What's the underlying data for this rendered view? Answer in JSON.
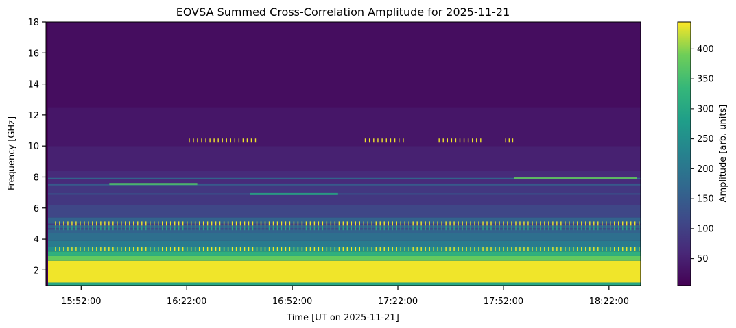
{
  "chart_data": {
    "type": "heatmap",
    "title": "EOVSA Summed Cross-Correlation Amplitude for 2025-11-21",
    "xlabel": "Time [UT on 2025-11-21]",
    "ylabel": "Frequency [GHz]",
    "x_ticks": [
      "15:52:00",
      "16:22:00",
      "16:52:00",
      "17:22:00",
      "17:52:00",
      "18:22:00"
    ],
    "x_range": [
      "15:42:00",
      "18:31:00"
    ],
    "y_ticks": [
      2,
      4,
      6,
      8,
      10,
      12,
      14,
      16,
      18
    ],
    "ylim": [
      1,
      18
    ],
    "colorbar": {
      "label": "Amplitude [arb. units]",
      "ticks": [
        50,
        100,
        150,
        200,
        250,
        300,
        350,
        400
      ],
      "range": [
        5,
        445
      ],
      "colormap": "viridis"
    },
    "bands": [
      {
        "f_low": 1.0,
        "f_high": 1.2,
        "amplitude": 300
      },
      {
        "f_low": 1.2,
        "f_high": 2.6,
        "amplitude": 440
      },
      {
        "f_low": 2.6,
        "f_high": 2.9,
        "amplitude": 380
      },
      {
        "f_low": 2.9,
        "f_high": 3.2,
        "amplitude": 320
      },
      {
        "f_low": 3.2,
        "f_high": 3.5,
        "amplitude": 250
      },
      {
        "f_low": 3.5,
        "f_high": 3.9,
        "amplitude": 210
      },
      {
        "f_low": 3.9,
        "f_high": 4.4,
        "amplitude": 185
      },
      {
        "f_low": 4.4,
        "f_high": 5.4,
        "amplitude": 160
      },
      {
        "f_low": 5.4,
        "f_high": 6.2,
        "amplitude": 110
      },
      {
        "f_low": 6.2,
        "f_high": 7.6,
        "amplitude": 85
      },
      {
        "f_low": 7.6,
        "f_high": 8.4,
        "amplitude": 65
      },
      {
        "f_low": 8.4,
        "f_high": 10.0,
        "amplitude": 50
      },
      {
        "f_low": 10.0,
        "f_high": 12.5,
        "amplitude": 35
      },
      {
        "f_low": 12.5,
        "f_high": 18.0,
        "amplitude": 22
      }
    ],
    "lines": [
      {
        "freq": 7.5,
        "amplitude": 150
      },
      {
        "freq": 6.9,
        "amplitude": 140
      },
      {
        "freq": 7.9,
        "amplitude": 170
      },
      {
        "freq": 4.95,
        "amplitude": 90
      },
      {
        "freq": 4.65,
        "amplitude": 95
      }
    ],
    "features": [
      {
        "kind": "line",
        "freq": 7.55,
        "t_start": "16:00:00",
        "t_end": "16:25:00",
        "amplitude": 360
      },
      {
        "kind": "line",
        "freq": 6.9,
        "t_start": "16:40:00",
        "t_end": "17:05:00",
        "amplitude": 300
      },
      {
        "kind": "line",
        "freq": 7.95,
        "t_start": "17:55:00",
        "t_end": "18:30:00",
        "amplitude": 380
      },
      {
        "kind": "rfi",
        "freq": 10.35,
        "t_start": "16:22:00",
        "t_end": "16:42:00",
        "amplitude": 440
      },
      {
        "kind": "rfi",
        "freq": 10.35,
        "t_start": "17:12:00",
        "t_end": "17:24:00",
        "amplitude": 440
      },
      {
        "kind": "rfi",
        "freq": 10.35,
        "t_start": "17:33:00",
        "t_end": "17:46:00",
        "amplitude": 440
      },
      {
        "kind": "rfi",
        "freq": 10.35,
        "t_start": "17:52:00",
        "t_end": "17:55:00",
        "amplitude": 440
      },
      {
        "kind": "rfi",
        "freq": 3.35,
        "t_start": "15:44:00",
        "t_end": "18:31:00",
        "amplitude": 440
      },
      {
        "kind": "rfi",
        "freq": 5.0,
        "t_start": "15:44:00",
        "t_end": "18:31:00",
        "amplitude": 440
      },
      {
        "kind": "rfi",
        "freq": 4.7,
        "t_start": "15:44:00",
        "t_end": "18:31:00",
        "amplitude": 300
      }
    ]
  }
}
